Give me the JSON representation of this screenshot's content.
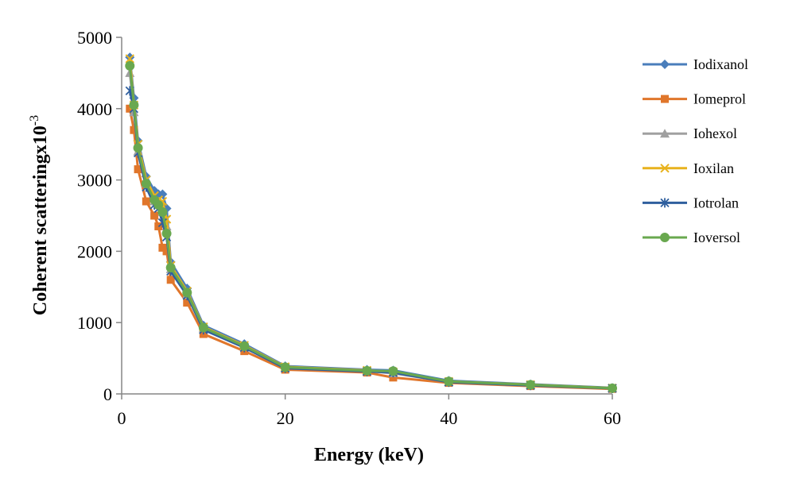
{
  "chart_data": {
    "type": "line",
    "title": "",
    "xlabel": "Energy (keV)",
    "ylabel_main": "Coherent scatteringx10",
    "ylabel_exp": "-3",
    "xlim": [
      0,
      60
    ],
    "ylim": [
      0,
      5000
    ],
    "x_ticks": [
      0,
      20,
      40,
      60
    ],
    "y_ticks": [
      0,
      1000,
      2000,
      3000,
      4000,
      5000
    ],
    "grid": false,
    "legend_position": "right",
    "x": [
      1,
      1.5,
      2,
      3,
      4,
      4.5,
      5,
      5.5,
      6,
      8,
      10,
      15,
      20,
      30,
      33.2,
      40,
      50,
      60
    ],
    "series": [
      {
        "name": "Iodixanol",
        "color": "#4a7ebb",
        "marker": "diamond",
        "values": [
          4720,
          4150,
          3550,
          3050,
          2850,
          2800,
          2800,
          2600,
          1850,
          1480,
          960,
          700,
          390,
          340,
          330,
          185,
          135,
          85
        ]
      },
      {
        "name": "Iomeprol",
        "color": "#e0762b",
        "marker": "square",
        "values": [
          4000,
          3700,
          3150,
          2700,
          2500,
          2350,
          2050,
          2000,
          1600,
          1280,
          840,
          600,
          340,
          300,
          230,
          155,
          110,
          70
        ]
      },
      {
        "name": "Iohexol",
        "color": "#a0a0a0",
        "marker": "triangle",
        "values": [
          4500,
          3950,
          3400,
          2950,
          2700,
          2650,
          2550,
          2350,
          1750,
          1400,
          920,
          660,
          370,
          320,
          290,
          170,
          125,
          80
        ]
      },
      {
        "name": "Ioxilan",
        "color": "#e8b21d",
        "marker": "x",
        "values": [
          4700,
          4050,
          3500,
          3000,
          2780,
          2720,
          2700,
          2450,
          1800,
          1440,
          940,
          680,
          380,
          330,
          310,
          175,
          130,
          82
        ]
      },
      {
        "name": "Iotrolan",
        "color": "#2f5f9e",
        "marker": "star",
        "values": [
          4250,
          4000,
          3380,
          2900,
          2650,
          2600,
          2400,
          2200,
          1720,
          1380,
          900,
          650,
          360,
          315,
          300,
          165,
          120,
          78
        ]
      },
      {
        "name": "Ioversol",
        "color": "#69a84f",
        "marker": "circle",
        "values": [
          4600,
          4050,
          3450,
          2950,
          2720,
          2650,
          2550,
          2250,
          1770,
          1420,
          930,
          670,
          375,
          325,
          320,
          175,
          128,
          80
        ]
      }
    ]
  }
}
